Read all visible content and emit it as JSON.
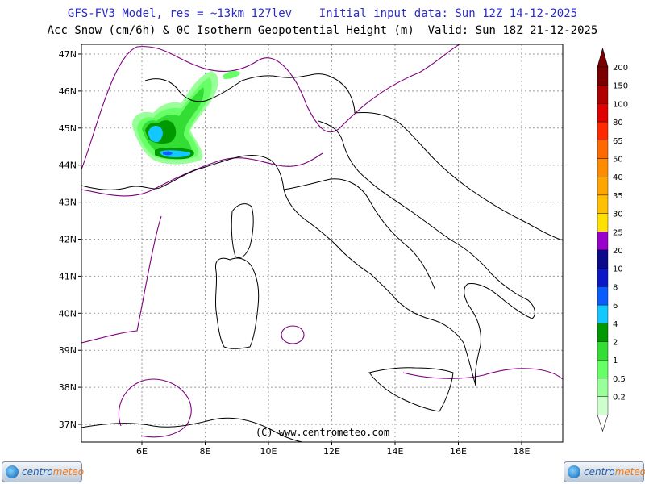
{
  "header": {
    "line1": "GFS-FV3 Model, res = ~13km 127lev    Initial input data: Sun 12Z 14-12-2025",
    "line2": "Acc Snow (cm/6h) & 0C Isotherm Geopotential Height (m)  Valid: Sun 18Z 21-12-2025"
  },
  "map": {
    "lat_labels": [
      "47N",
      "46N",
      "45N",
      "44N",
      "43N",
      "42N",
      "41N",
      "40N",
      "39N",
      "38N",
      "37N"
    ],
    "lon_labels": [
      "6E",
      "8E",
      "10E",
      "12E",
      "14E",
      "16E",
      "18E"
    ],
    "copyright": "(C)  www.centrometeo.com"
  },
  "legend": {
    "labels": [
      "200",
      "150",
      "100",
      "80",
      "65",
      "50",
      "40",
      "35",
      "30",
      "25",
      "20",
      "10",
      "8",
      "6",
      "4",
      "2",
      "1",
      "0.5",
      "0.2"
    ],
    "colors": [
      "#7a0000",
      "#b00000",
      "#e00000",
      "#ff2a00",
      "#ff6a00",
      "#ff8c00",
      "#ffa500",
      "#ffc000",
      "#ffe000",
      "#9900cc",
      "#0a0a8a",
      "#0a18c8",
      "#0a5cff",
      "#14c8ff",
      "#009900",
      "#33dd33",
      "#66ff66",
      "#99ff99",
      "#ccffcc"
    ],
    "top_color": "#7a0000"
  },
  "logos": {
    "left": {
      "part1": "centro",
      "part2": "meteo"
    },
    "right": {
      "part1": "centro",
      "part2": "meteo"
    }
  }
}
